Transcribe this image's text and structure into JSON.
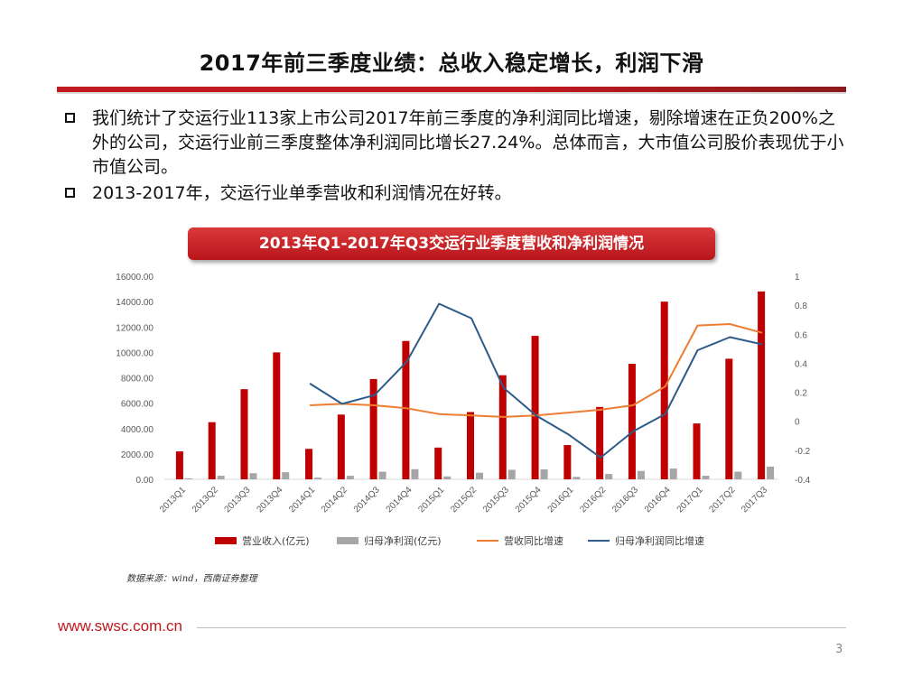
{
  "slide": {
    "title": "2017年前三季度业绩：总收入稳定增长，利润下滑",
    "bullets": [
      "我们统计了交运行业113家上市公司2017年前三季度的净利润同比增速，剔除增速在正负200%之外的公司，交运行业前三季度整体净利润同比增长27.24%。总体而言，大市值公司股价表现优于小市值公司。",
      "2013-2017年，交运行业单季营收和利润情况在好转。"
    ],
    "source": "数据来源：wind，西南证券整理",
    "footer_url": "www.swsc.com.cn",
    "page_number": "3"
  },
  "chart_data": {
    "type": "bar",
    "title": "2013年Q1-2017年Q3交运行业季度营收和净利润情况",
    "categories": [
      "2013Q1",
      "2013Q2",
      "2013Q3",
      "2013Q4",
      "2014Q1",
      "2014Q2",
      "2014Q3",
      "2014Q4",
      "2015Q1",
      "2015Q2",
      "2015Q3",
      "2015Q4",
      "2016Q1",
      "2016Q2",
      "2016Q3",
      "2016Q4",
      "2017Q1",
      "2017Q2",
      "2017Q3"
    ],
    "y_left": {
      "min": 0,
      "max": 16000,
      "step": 2000,
      "tick_labels": [
        "0.00",
        "2000.00",
        "4000.00",
        "6000.00",
        "8000.00",
        "10000.00",
        "12000.00",
        "14000.00",
        "16000.00"
      ]
    },
    "y_right": {
      "min": -0.4,
      "max": 1,
      "step": 0.2,
      "tick_labels": [
        "-0.4",
        "-0.2",
        "0",
        "0.2",
        "0.4",
        "0.6",
        "0.8",
        "1"
      ]
    },
    "series": [
      {
        "name": "营业收入(亿元)",
        "type": "bar",
        "axis": "left",
        "color": "#c00000",
        "values": [
          2200,
          4500,
          7100,
          10000,
          2400,
          5100,
          7900,
          10900,
          2500,
          5300,
          8200,
          11300,
          2700,
          5700,
          9100,
          14000,
          4400,
          9500,
          14800
        ]
      },
      {
        "name": "归母净利润(亿元)",
        "type": "bar",
        "axis": "left",
        "color": "#a6a6a6",
        "values": [
          80,
          280,
          480,
          560,
          130,
          280,
          600,
          800,
          230,
          520,
          750,
          780,
          190,
          420,
          660,
          850,
          280,
          600,
          1000
        ]
      },
      {
        "name": "营收同比增速",
        "type": "line",
        "axis": "right",
        "color": "#ed7d31",
        "values": [
          null,
          null,
          null,
          null,
          0.11,
          0.12,
          0.11,
          0.09,
          0.05,
          0.04,
          0.03,
          0.04,
          0.06,
          0.08,
          0.11,
          0.24,
          0.66,
          0.67,
          0.61
        ]
      },
      {
        "name": "归母净利润同比增速",
        "type": "line",
        "axis": "right",
        "color": "#2e5b8a",
        "values": [
          null,
          null,
          null,
          null,
          0.26,
          0.12,
          0.18,
          0.41,
          0.81,
          0.71,
          0.23,
          0.04,
          -0.09,
          -0.25,
          -0.07,
          0.05,
          0.49,
          0.58,
          0.53
        ]
      }
    ],
    "legend_position": "bottom"
  }
}
